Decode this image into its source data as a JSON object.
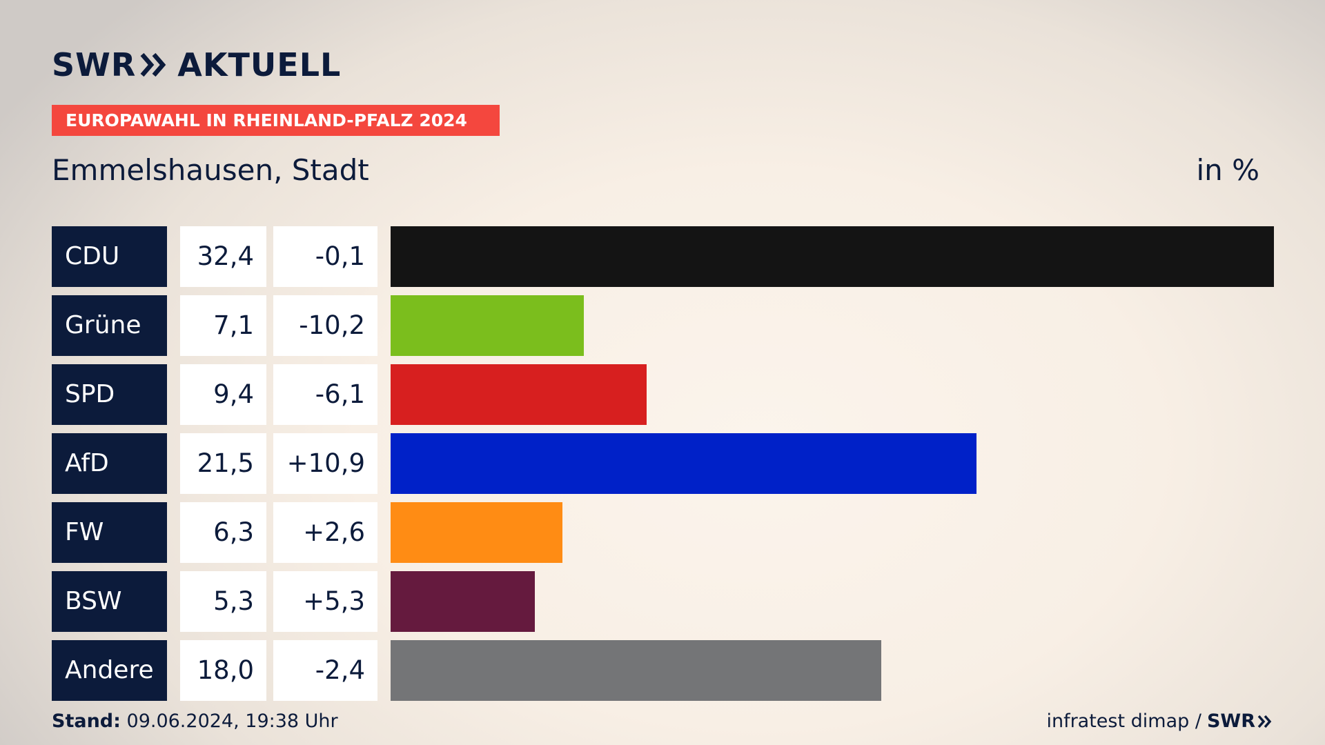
{
  "header": {
    "logo_left": "SWR",
    "logo_right": "AKTUELL",
    "banner": "EUROPAWAHL IN RHEINLAND-PFALZ 2024",
    "place": "Emmelshausen, Stadt",
    "unit": "in %"
  },
  "chart_data": {
    "type": "bar",
    "orientation": "horizontal",
    "title": "Emmelshausen, Stadt",
    "unit": "in %",
    "categories": [
      "CDU",
      "Grüne",
      "SPD",
      "AfD",
      "FW",
      "BSW",
      "Andere"
    ],
    "values": [
      32.4,
      7.1,
      9.4,
      21.5,
      6.3,
      5.3,
      18.0
    ],
    "value_labels": [
      "32,4",
      "7,1",
      "9,4",
      "21,5",
      "6,3",
      "5,3",
      "18,0"
    ],
    "changes": [
      -0.1,
      -10.2,
      -6.1,
      10.9,
      2.6,
      5.3,
      -2.4
    ],
    "change_labels": [
      "-0,1",
      "-10,2",
      "-6,1",
      "+10,9",
      "+2,6",
      "+5,3",
      "-2,4"
    ],
    "colors": [
      "#141414",
      "#7bbe1d",
      "#d71f1f",
      "#0021c8",
      "#ff8c14",
      "#651a3e",
      "#747577"
    ],
    "xlim": [
      0,
      32.4
    ],
    "grid": false,
    "legend": "none"
  },
  "footer": {
    "stand_label": "Stand:",
    "stand_value": "09.06.2024, 19:38 Uhr",
    "source": "infratest dimap /",
    "brand": "SWR"
  }
}
